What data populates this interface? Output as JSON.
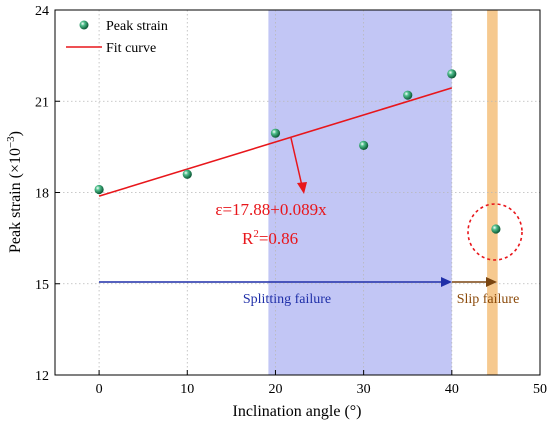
{
  "chart_data": {
    "type": "scatter",
    "xlabel": "Inclination angle (°)",
    "ylabel": "Peak strain (×10",
    "ylabel_exponent": "−3",
    "ylabel_close": ")",
    "xlim": [
      -5,
      50
    ],
    "ylim": [
      12,
      24
    ],
    "xticks": [
      0,
      10,
      20,
      30,
      40,
      50
    ],
    "yticks": [
      12,
      15,
      18,
      21,
      24
    ],
    "grid": true,
    "legend_position": "top-left",
    "series": [
      {
        "name": "Peak strain",
        "marker": "sphere",
        "color": "#1f8a5a",
        "x": [
          0,
          10,
          20,
          30,
          35,
          40,
          45
        ],
        "y": [
          18.1,
          18.6,
          19.95,
          19.55,
          21.2,
          21.9,
          16.8
        ]
      },
      {
        "name": "Fit curve",
        "type": "line",
        "color": "#e8161b",
        "x": [
          0,
          40
        ],
        "y": [
          17.88,
          21.44
        ]
      }
    ],
    "regions": [
      {
        "label": "Splitting failure",
        "x_range": [
          19.2,
          40
        ],
        "color": "#c2c6f5",
        "text_color": "#1f2fa8"
      },
      {
        "label": "Slip failure",
        "x_range": [
          44,
          45.2
        ],
        "color": "#f6c98f",
        "text_color": "#8b4a0a"
      }
    ],
    "annotations": {
      "equation": "ε=17.88+0.089x",
      "r2_base": "R",
      "r2_sup": "2",
      "r2_value": "=0.86",
      "text_color": "#e8161b"
    }
  }
}
